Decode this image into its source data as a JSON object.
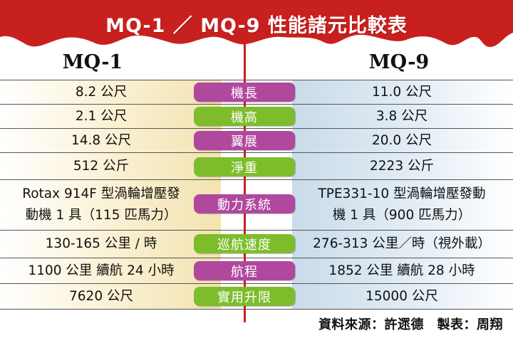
{
  "title": "MQ-1 ／ MQ-9 性能諸元比較表",
  "columns": {
    "left": "MQ-1",
    "right": "MQ-9"
  },
  "rows": [
    {
      "label": "機長",
      "left": "8.2 公尺",
      "right": "11.0 公尺"
    },
    {
      "label": "機高",
      "left": "2.1 公尺",
      "right": "3.8 公尺"
    },
    {
      "label": "翼展",
      "left": "14.8 公尺",
      "right": "20.0 公尺"
    },
    {
      "label": "淨重",
      "left": "512 公斤",
      "right": "2223 公斤"
    },
    {
      "label": "動力系統",
      "left": "Rotax 914F 型渦輪增壓發\n動機 1 具（115 匹馬力）",
      "right": "TPE331-10 型渦輪增壓發動\n機 1 具（900 匹馬力）"
    },
    {
      "label": "巡航速度",
      "left": "130-165 公里 / 時",
      "right": "276-313 公里／時（視外載）"
    },
    {
      "label": "航程",
      "left": "1100 公里  續航 24 小時",
      "right": "1852 公里  續航 28 小時"
    },
    {
      "label": "實用升限",
      "left": "7620 公尺",
      "right": "15000 公尺"
    }
  ],
  "source": "資料來源：許遝德　製表：周翔",
  "colors": {
    "banner": "#c8201e",
    "magenta": "#b0489e",
    "green": "#7dbd2c",
    "axis": "#c8201e"
  }
}
